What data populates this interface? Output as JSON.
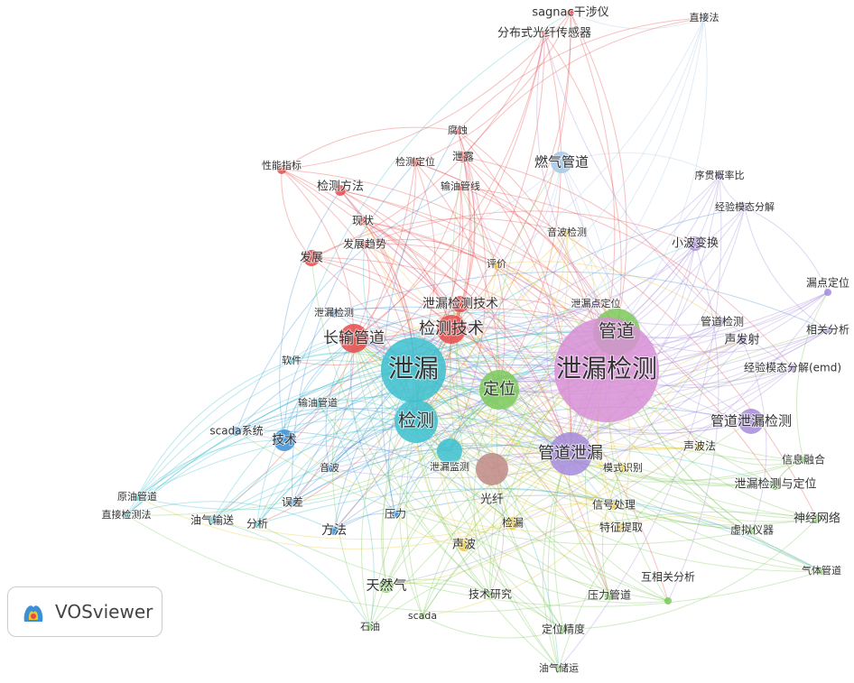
{
  "nodes": [
    "sagnac干涉仪",
    "分布式光纤传感器",
    "腐蚀",
    "检测定位",
    "泄露",
    "性能指标",
    "检测方法",
    "输油管线",
    "现状",
    "发展趋势",
    "发展",
    "泄漏检测技术",
    "检测技术",
    "长输管道",
    "泄漏检测",
    "泄漏",
    "检测",
    "泄漏监测",
    "输油管道",
    "软件",
    "scada系统",
    "技术",
    "原油管道",
    "直接检测法",
    "油气输送",
    "分析",
    "误差",
    "音波",
    "方法",
    "压力",
    "燃气管道",
    "直接法",
    "管道",
    "定位",
    "天然气",
    "石油",
    "scada",
    "技术研究",
    "压力管道",
    "定位精度",
    "油气储运",
    "互相关分析",
    "气体管道",
    "虚拟仪器",
    "神经网络",
    "泄漏检测与定位",
    "信息融合",
    "泄漏检测",
    "管道泄漏",
    "管道泄漏检测",
    "声发射",
    "相关分析",
    "经验模态分解(emd)",
    "漏点定位",
    "小波变换",
    "序贯概率比",
    "经验模态分解",
    "管道检测",
    "泄漏点定位",
    "声波法",
    "光纤",
    "检漏",
    "声波",
    "信号处理",
    "特征提取",
    "模式识别",
    "评价",
    "音波检测"
  ],
  "logo": "VOSviewer"
}
